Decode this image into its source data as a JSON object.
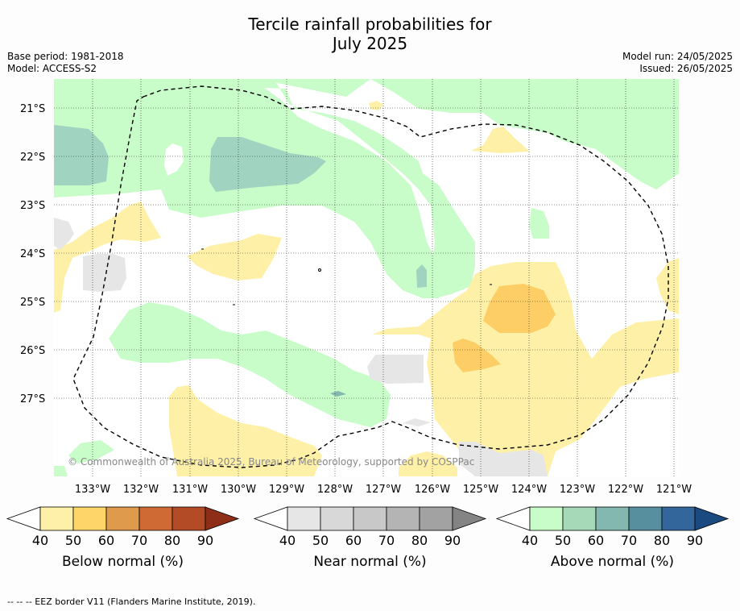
{
  "title_line1": "Tercile rainfall probabilities for",
  "title_line2": "July 2025",
  "base_period": "Base period: 1981-2018",
  "model": "Model: ACCESS-S2",
  "model_run": "Model run: 24/05/2025",
  "issued": "Issued: 26/05/2025",
  "copyright": "© Commonwealth of Australia 2025, Bureau of Meteorology, supported by COSPPac",
  "lat_labels": [
    "21°S",
    "22°S",
    "23°S",
    "24°S",
    "25°S",
    "26°S",
    "27°S"
  ],
  "lon_labels": [
    "133°W",
    "132°W",
    "131°W",
    "130°W",
    "129°W",
    "128°W",
    "127°W",
    "126°W",
    "125°W",
    "124°W",
    "123°W",
    "122°W",
    "121°W"
  ],
  "footer": "--  --  -- EEZ border V11 (Flanders Marine Institute, 2019).",
  "colorbars": [
    {
      "label": "Below normal (%)",
      "ticks": [
        "40",
        "50",
        "60",
        "70",
        "80",
        "90"
      ],
      "colors": [
        "#fff0a8",
        "#fdd568",
        "#e09a4c",
        "#cf6a35",
        "#b34b27",
        "#8f2e18"
      ]
    },
    {
      "label": "Near normal (%)",
      "ticks": [
        "40",
        "50",
        "60",
        "70",
        "80",
        "90"
      ],
      "colors": [
        "#e6e6e6",
        "#d8d8d8",
        "#c8c8c8",
        "#b4b4b4",
        "#a2a2a2",
        "#848484"
      ]
    },
    {
      "label": "Above normal (%)",
      "ticks": [
        "40",
        "50",
        "60",
        "70",
        "80",
        "90"
      ],
      "colors": [
        "#c8fcc8",
        "#a6d9b8",
        "#82b8b0",
        "#578f9f",
        "#33669a",
        "#1a4a80"
      ]
    }
  ],
  "colors": {
    "above_40": "#c8fcc8",
    "above_50": "#a6d9b8",
    "below_40": "#fff0a8",
    "below_50": "#fdd568",
    "near_40": "#e6e6e6"
  }
}
